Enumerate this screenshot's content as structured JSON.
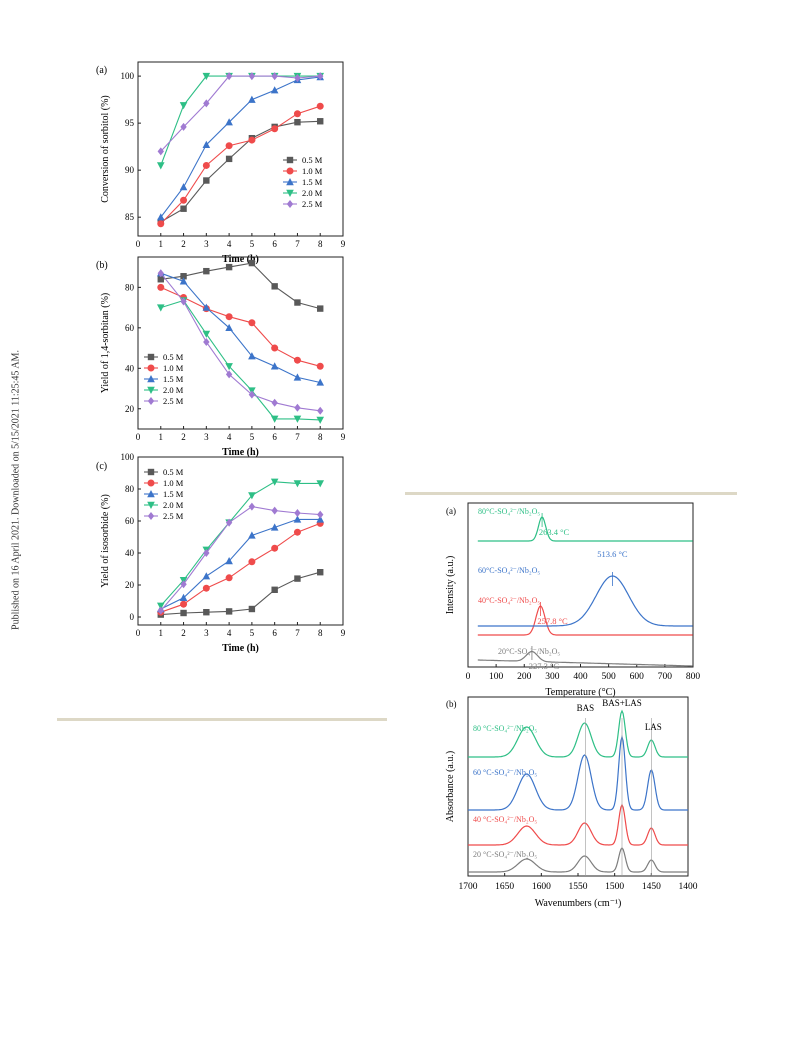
{
  "side_note": "Published on 16 April 2021. Downloaded on 5/15/2021 11:25:45 AM.",
  "series_colors": [
    "#595959",
    "#ef4b4b",
    "#3c74c9",
    "#2ebf86",
    "#a07ad2"
  ],
  "series_markers": [
    "square",
    "circle",
    "triangle-up",
    "triangle-down",
    "diamond"
  ],
  "chart_data": [
    {
      "panel": "(a)",
      "type": "line",
      "xlabel": "Time (h)",
      "ylabel": "Conversion of sorbitol (%)",
      "xlim": [
        0,
        9
      ],
      "ylim": [
        83,
        101.5
      ],
      "xticks": [
        0,
        1,
        2,
        3,
        4,
        5,
        6,
        7,
        8,
        9
      ],
      "yticks": [
        85,
        90,
        95,
        100
      ],
      "legend": "right-middle",
      "x": [
        1,
        2,
        3,
        4,
        5,
        6,
        7,
        8
      ],
      "series": [
        {
          "name": "0.5 M",
          "values": [
            84.5,
            85.9,
            88.9,
            91.2,
            93.4,
            94.6,
            95.1,
            95.2
          ]
        },
        {
          "name": "1.0 M",
          "values": [
            84.3,
            86.8,
            90.5,
            92.6,
            93.2,
            94.4,
            96.0,
            96.8
          ]
        },
        {
          "name": "1.5 M",
          "values": [
            85.0,
            88.2,
            92.7,
            95.1,
            97.5,
            98.5,
            99.6,
            99.9
          ]
        },
        {
          "name": "2.0 M",
          "values": [
            90.5,
            96.9,
            100.0,
            100.0,
            100.0,
            100.0,
            100.0,
            100.0
          ]
        },
        {
          "name": "2.5 M",
          "values": [
            92.0,
            94.6,
            97.1,
            100.0,
            100.0,
            100.0,
            99.8,
            100.0
          ]
        }
      ]
    },
    {
      "panel": "(b)",
      "type": "line",
      "xlabel": "Time (h)",
      "ylabel": "Yield of 1,4-sorbitan (%)",
      "xlim": [
        0,
        9
      ],
      "ylim": [
        10,
        95
      ],
      "xticks": [
        0,
        1,
        2,
        3,
        4,
        5,
        6,
        7,
        8,
        9
      ],
      "yticks": [
        20,
        40,
        60,
        80
      ],
      "legend": "bottom-left",
      "x": [
        1,
        2,
        3,
        4,
        5,
        6,
        7,
        8
      ],
      "series": [
        {
          "name": "0.5 M",
          "values": [
            84,
            85.5,
            88,
            90,
            92,
            80.5,
            72.5,
            69.5
          ]
        },
        {
          "name": "1.0 M",
          "values": [
            80,
            75,
            69.5,
            65.5,
            62.5,
            50,
            44,
            41
          ]
        },
        {
          "name": "1.5 M",
          "values": [
            87,
            83,
            70,
            60,
            46,
            41,
            35.5,
            33
          ]
        },
        {
          "name": "2.0 M",
          "values": [
            70,
            73.5,
            57,
            41,
            29,
            15,
            15,
            14.5
          ]
        },
        {
          "name": "2.5 M",
          "values": [
            87,
            73,
            53,
            37,
            27,
            23,
            20.5,
            19
          ]
        }
      ]
    },
    {
      "panel": "(c)",
      "type": "line",
      "xlabel": "Time (h)",
      "ylabel": "Yield of isosorbide (%)",
      "xlim": [
        0,
        9
      ],
      "ylim": [
        -5,
        100
      ],
      "xticks": [
        0,
        1,
        2,
        3,
        4,
        5,
        6,
        7,
        8,
        9
      ],
      "yticks": [
        0,
        20,
        40,
        60,
        80,
        100
      ],
      "legend": "top-left",
      "x": [
        1,
        2,
        3,
        4,
        5,
        6,
        7,
        8
      ],
      "series": [
        {
          "name": "0.5 M",
          "values": [
            1.5,
            2.5,
            3,
            3.5,
            5,
            17,
            24,
            28
          ]
        },
        {
          "name": "1.0 M",
          "values": [
            3,
            8,
            18,
            24.5,
            34.5,
            43,
            53,
            58.5
          ]
        },
        {
          "name": "1.5 M",
          "values": [
            5,
            12,
            25.5,
            35,
            51,
            56,
            61,
            61
          ]
        },
        {
          "name": "2.0 M",
          "values": [
            7,
            23,
            42,
            59,
            76,
            84.5,
            83.5,
            83.5
          ]
        },
        {
          "name": "2.5 M",
          "values": [
            4,
            20.5,
            40,
            59,
            69,
            66.5,
            65,
            64
          ]
        }
      ]
    },
    {
      "panel": "(a)",
      "type": "line",
      "xlabel": "Temperature (°C)",
      "ylabel": "Intensity (a.u.)",
      "xlim": [
        0,
        800
      ],
      "xticks": [
        0,
        100,
        200,
        300,
        400,
        500,
        600,
        700,
        800
      ],
      "curves": [
        {
          "name": "20°C-SO₄²⁻/Nb₂O₅",
          "color": "#7d7d7d",
          "peak_x": 227.3,
          "peak_label": "227.3 °C"
        },
        {
          "name": "40°C-SO₄²⁻/Nb₂O₅",
          "color": "#ef4b4b",
          "peak_x": 257.8,
          "peak_label": "257.8 °C"
        },
        {
          "name": "60°C-SO₄²⁻/Nb₂O₅",
          "color": "#3c74c9",
          "peak_x": 513.6,
          "peak_label": "513.6 °C"
        },
        {
          "name": "80°C-SO₄²⁻/Nb₂O₅",
          "color": "#2ebf86",
          "peak_x": 263.4,
          "peak_label": "263.4 °C"
        }
      ]
    },
    {
      "panel": "(b)",
      "type": "line",
      "xlabel": "Wavenumbers (cm⁻¹)",
      "ylabel": "Absorbance (a.u.)",
      "xlim": [
        1700,
        1400
      ],
      "xticks": [
        1700,
        1650,
        1600,
        1550,
        1500,
        1450,
        1400
      ],
      "bands": [
        {
          "label": "BAS",
          "x": 1540
        },
        {
          "label": "BAS+LAS",
          "x": 1490
        },
        {
          "label": "LAS",
          "x": 1450
        }
      ],
      "curves": [
        {
          "name": "20 °C-SO₄²⁻/Nb₂O₅",
          "color": "#7d7d7d"
        },
        {
          "name": "40 °C-SO₄²⁻/Nb₂O₅",
          "color": "#ef4b4b"
        },
        {
          "name": "60 °C-SO₄²⁻/Nb₂O₅",
          "color": "#3c74c9"
        },
        {
          "name": "80 °C-SO₄²⁻/Nb₂O₅",
          "color": "#2ebf86"
        }
      ]
    }
  ]
}
